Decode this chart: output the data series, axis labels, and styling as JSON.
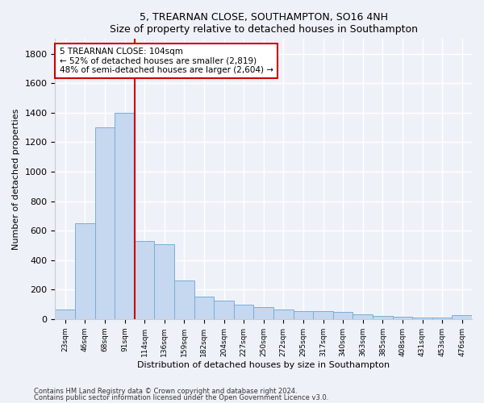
{
  "title1": "5, TREARNAN CLOSE, SOUTHAMPTON, SO16 4NH",
  "title2": "Size of property relative to detached houses in Southampton",
  "xlabel": "Distribution of detached houses by size in Southampton",
  "ylabel": "Number of detached properties",
  "categories": [
    "23sqm",
    "46sqm",
    "68sqm",
    "91sqm",
    "114sqm",
    "136sqm",
    "159sqm",
    "182sqm",
    "204sqm",
    "227sqm",
    "250sqm",
    "272sqm",
    "295sqm",
    "317sqm",
    "340sqm",
    "363sqm",
    "385sqm",
    "408sqm",
    "431sqm",
    "453sqm",
    "476sqm"
  ],
  "values": [
    65,
    650,
    1300,
    1400,
    530,
    510,
    260,
    150,
    125,
    100,
    80,
    65,
    55,
    55,
    50,
    30,
    20,
    15,
    10,
    10,
    25
  ],
  "bar_color": "#c5d8f0",
  "bar_edge_color": "#7aadd4",
  "vline_x_index": 3.5,
  "vline_color": "#cc0000",
  "annotation_text": "5 TREARNAN CLOSE: 104sqm\n← 52% of detached houses are smaller (2,819)\n48% of semi-detached houses are larger (2,604) →",
  "annotation_box_color": "#ffffff",
  "annotation_box_edge": "#cc0000",
  "ylim": [
    0,
    1900
  ],
  "yticks": [
    0,
    200,
    400,
    600,
    800,
    1000,
    1200,
    1400,
    1600,
    1800
  ],
  "footnote1": "Contains HM Land Registry data © Crown copyright and database right 2024.",
  "footnote2": "Contains public sector information licensed under the Open Government Licence v3.0.",
  "bg_color": "#eef2f8",
  "plot_bg_color": "#eef2f8"
}
